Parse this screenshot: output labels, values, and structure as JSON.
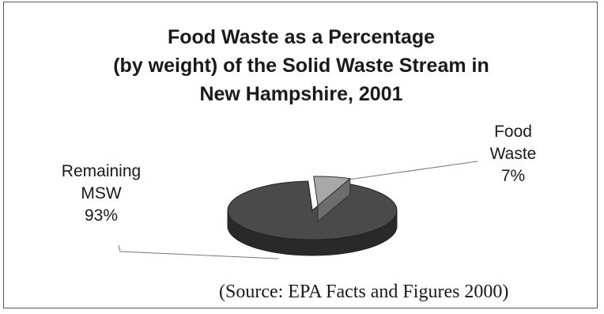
{
  "chart_data": {
    "type": "pie",
    "title_lines": [
      "Food Waste as a Percentage",
      "(by weight) of the Solid Waste Stream in",
      "New Hampshire, 2001"
    ],
    "slices": [
      {
        "name_lines": [
          "Remaining",
          "MSW"
        ],
        "value": 93,
        "value_label": "93%",
        "color": "#4a4a4a"
      },
      {
        "name_lines": [
          "Food",
          "Waste"
        ],
        "value": 7,
        "value_label": "7%",
        "color": "#a8a8a8"
      }
    ],
    "style": "3d-exploded"
  },
  "source": "(Source: EPA Facts and Figures 2000)"
}
